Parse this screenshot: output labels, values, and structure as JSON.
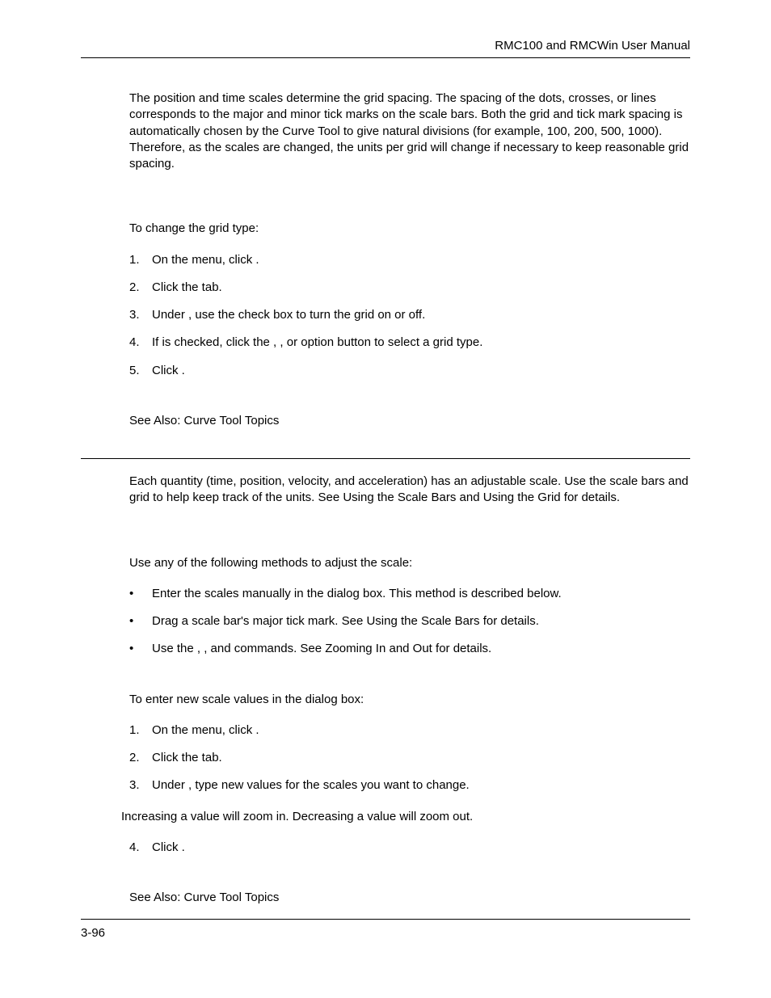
{
  "doc": {
    "running_head": "RMC100 and RMCWin User Manual",
    "page_number": "3-96",
    "font_family": "Arial, Helvetica, sans-serif",
    "font_size_pt": 11,
    "text_color": "#000000",
    "background_color": "#ffffff",
    "rule_color": "#000000"
  },
  "section1": {
    "intro": "The position and time scales determine the grid spacing. The spacing of the dots, crosses, or lines corresponds to the major and minor tick marks on the scale bars. Both the grid and tick mark spacing is automatically chosen by the Curve Tool to give natural divisions (for example, 100, 200, 500, 1000). Therefore, as the scales are changed, the units per grid will change if necessary to keep reasonable grid spacing.",
    "lead": "To change the grid type:",
    "steps": [
      "On the          menu, click             .",
      "Click the          tab.",
      "Under        , use the                 check box to turn the grid on or off.",
      "If                 is checked, click the        ,            , or          option button to select a grid type.",
      "Click      ."
    ],
    "see_also": "See Also: Curve Tool Topics"
  },
  "section2": {
    "intro": "Each quantity (time, position, velocity, and acceleration) has an adjustable scale. Use the scale bars and grid to help keep track of the units. See Using the Scale Bars and Using the Grid for details.",
    "lead": "Use any of the following methods to adjust the scale:",
    "bullets": [
      "Enter the scales manually in the               dialog box. This method is described below.",
      "Drag a scale bar's major tick mark. See Using the Scale Bars for details.",
      "Use the             ,                , and                  commands. See Zooming In and Out for details."
    ],
    "lead2": "To enter new scale values in the               dialog box:",
    "steps": [
      "On the          menu, click             .",
      "Click the          tab.",
      "Under                   , type new values for the scales you want to change."
    ],
    "note": "Increasing a value will zoom in. Decreasing a value will zoom out.",
    "steps_cont": [
      "Click      ."
    ],
    "see_also": "See Also: Curve Tool Topics"
  }
}
